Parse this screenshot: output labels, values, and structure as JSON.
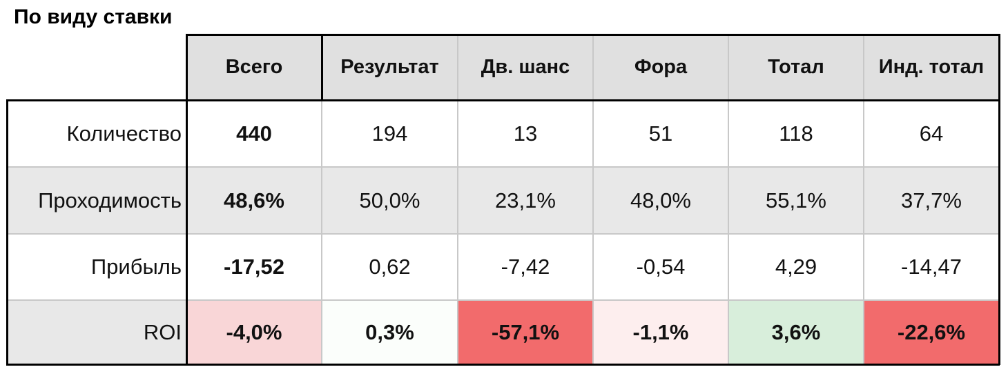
{
  "title": "По виду ставки",
  "table": {
    "header": [
      "Всего",
      "Результат",
      "Дв. шанс",
      "Фора",
      "Тотал",
      "Инд. тотал"
    ],
    "rows": [
      [
        "Количество",
        "440",
        "194",
        "13",
        "51",
        "118",
        "64"
      ],
      [
        "Проходимость",
        "48,6%",
        "50,0%",
        "23,1%",
        "48,0%",
        "55,1%",
        "37,7%"
      ],
      [
        "Прибыль",
        "-17,52",
        "0,62",
        "-7,42",
        "-0,54",
        "4,29",
        "-14,47"
      ],
      [
        "ROI",
        "-4,0%",
        "0,3%",
        "-57,1%",
        "-1,1%",
        "3,6%",
        "-22,6%"
      ]
    ]
  }
}
